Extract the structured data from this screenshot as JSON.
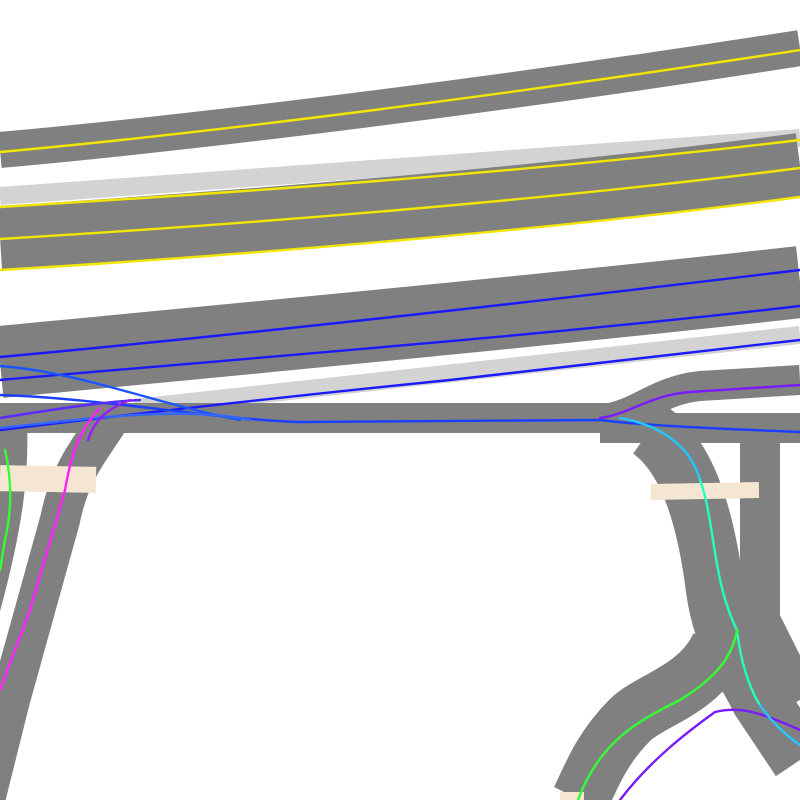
{
  "map": {
    "background_color": "#ffffff",
    "road_color": "#808080",
    "shoulder_color": "#d3d3d3",
    "crosswalk_color": "#f5e6d3",
    "lane_colors": {
      "yellow": "#f2e600",
      "blue": "#1a1aff",
      "violet": "#7a1aff",
      "cyan": "#22c8ff",
      "teal": "#22ffc0",
      "green": "#33ff33",
      "magenta": "#ff22ff"
    },
    "legend_visible": false,
    "labels_visible": false
  }
}
